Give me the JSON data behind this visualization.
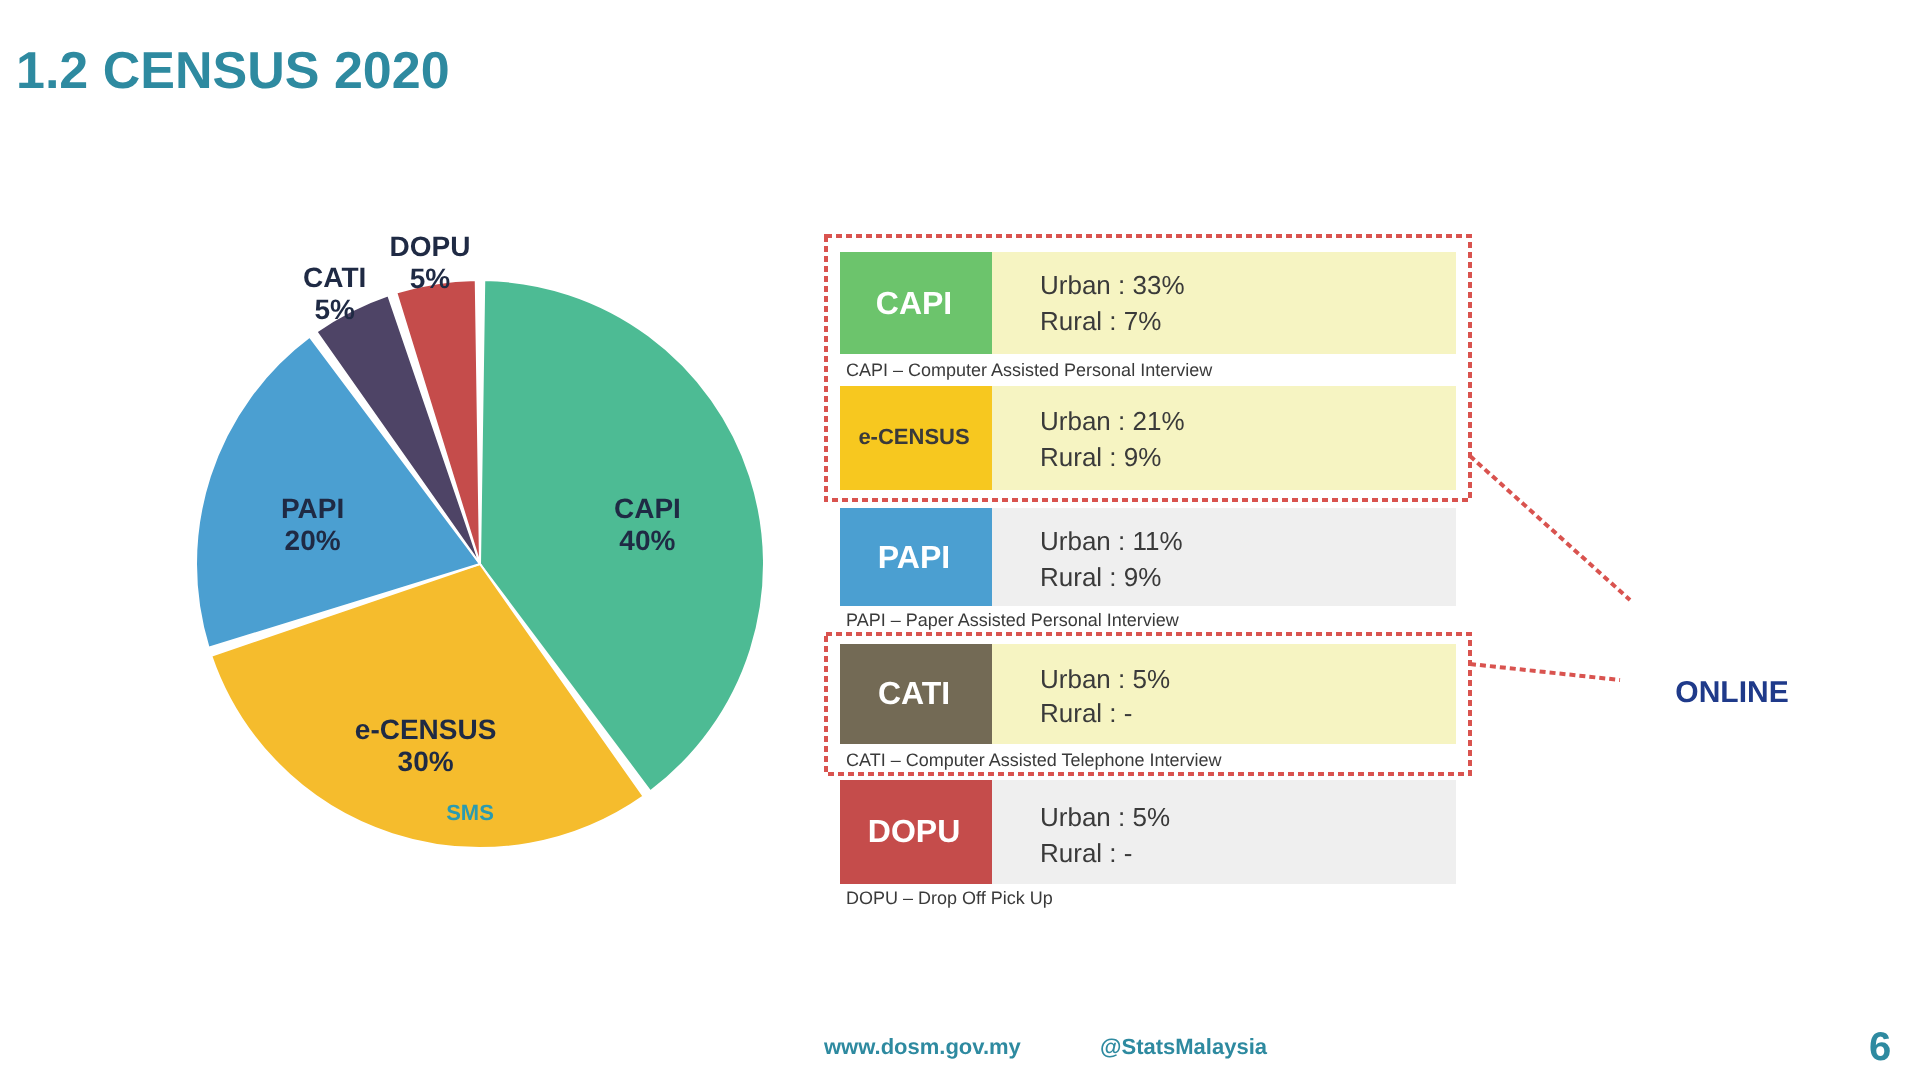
{
  "chart_data": [
    {
      "type": "pie",
      "title": "1.2 CENSUS 2020",
      "categories": [
        "CAPI",
        "e-CENSUS",
        "PAPI",
        "CATI",
        "DOPU"
      ],
      "values": [
        40,
        30,
        20,
        5,
        5
      ],
      "colors": [
        "#4dbb94",
        "#f5bc2d",
        "#4b9fd1",
        "#4e4466",
        "#c54c4b"
      ],
      "value_labels": [
        "40%",
        "30%",
        "20%",
        "5%",
        "5%"
      ],
      "annotations": [
        "SMS"
      ]
    },
    {
      "type": "other",
      "colors": [
        "#6cc46c",
        "#f7c81f",
        "#4b9fd1",
        "#736a55",
        "#c54c4b"
      ],
      "annotations": [
        "CAPI",
        "Urban : 33%",
        "Rural : 7%",
        "CAPI – Computer Assisted Personal Interview",
        "e-CENSUS",
        "Urban : 21%",
        "Rural : 9%",
        "PAPI",
        "Urban : 11%",
        "Rural : 9%",
        "PAPI – Paper Assisted Personal Interview",
        "CATI",
        "Urban : 5%",
        "Rural : -",
        "CATI – Computer Assisted Telephone Interview",
        "DOPU",
        "Urban : 5%",
        "Rural : -",
        "DOPU – Drop Off Pick Up",
        "ONLINE",
        "www.dosm.gov.my",
        "@StatsMalaysia",
        "6"
      ]
    }
  ]
}
